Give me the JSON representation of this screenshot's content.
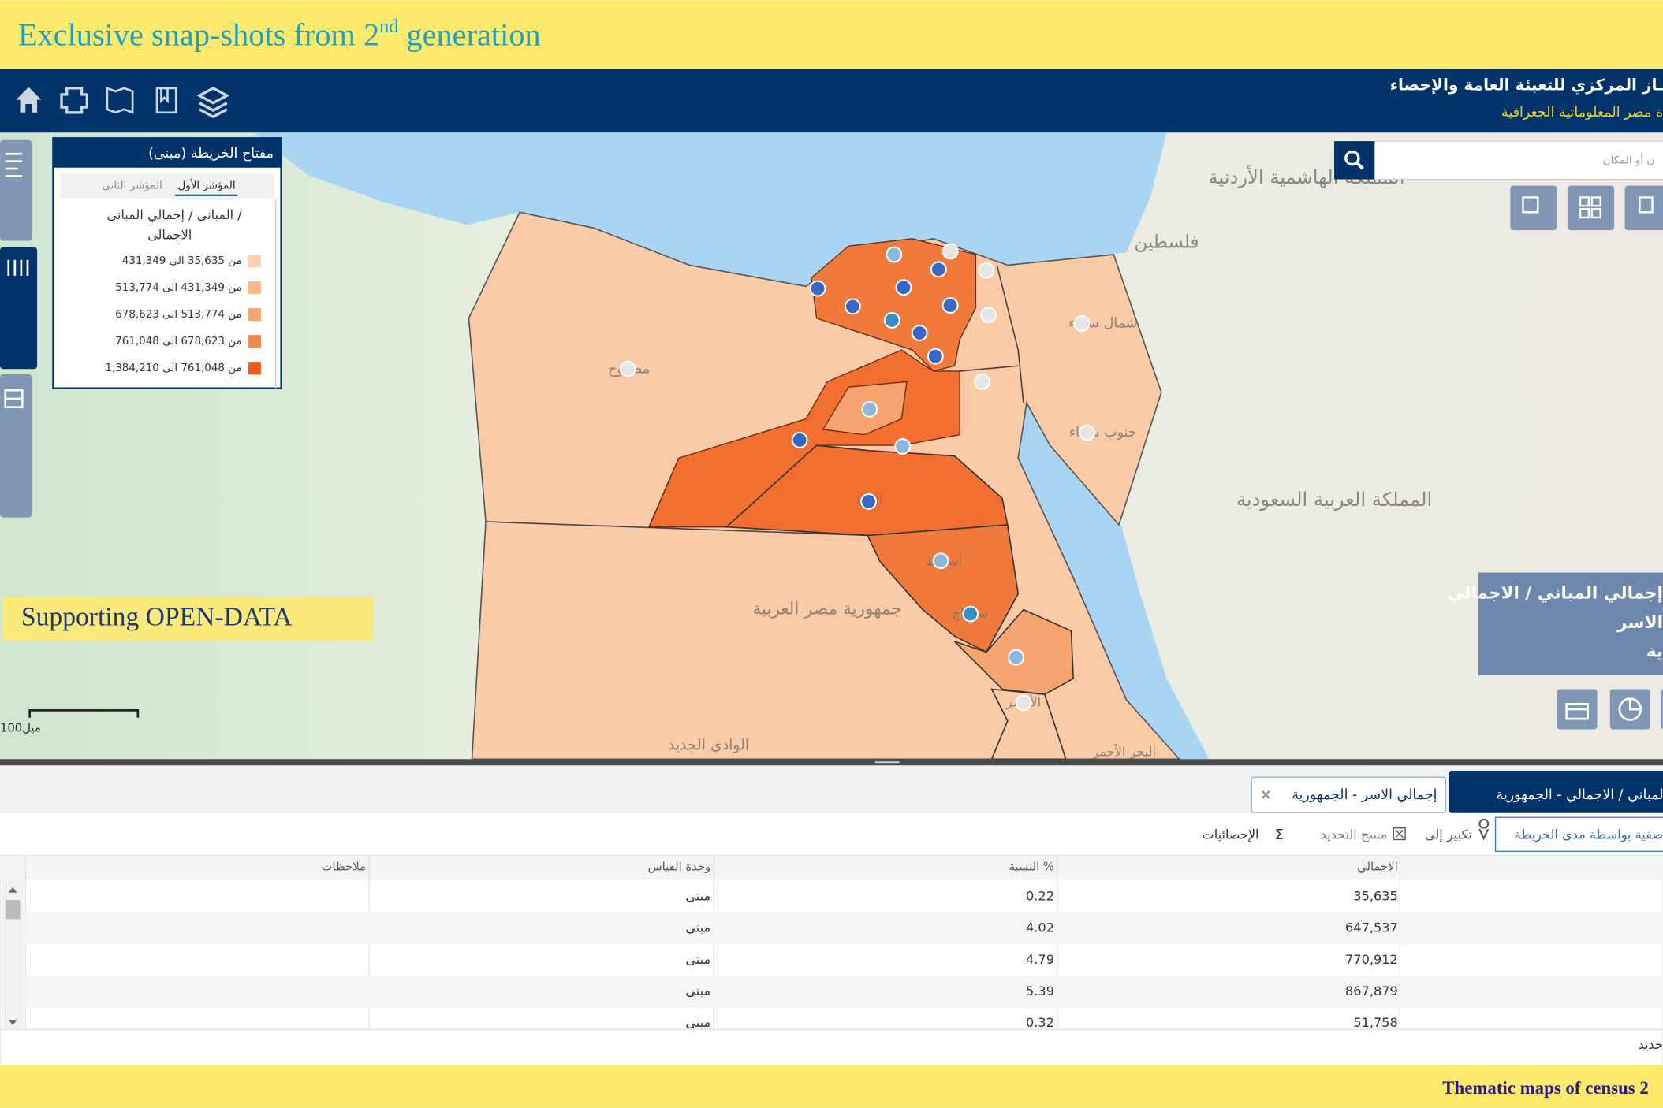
{
  "banner": {
    "title_parts": [
      "Exclusive snap-shots from 2",
      "nd",
      " generation"
    ]
  },
  "header": {
    "title": "ـاز المركزي للتعبئة العامة والإحصاء",
    "subtitle": "ة مصر المعلوماتية الجغرافية"
  },
  "search": {
    "placeholder": "ن أو المكان"
  },
  "legend": {
    "title": "مفتاح الخريطة (مبنى)",
    "tabs": [
      "المؤشر الأول",
      "المؤشر الثاني"
    ],
    "heading_lines": [
      "المبانى / إجمالي المبانى /",
      "الاجمالى"
    ],
    "items": [
      "من 35,635 الى 431,349",
      "من 431,349 الى 513,774",
      "من 513,774 الى 678,623",
      "من 678,623 الى 761,048",
      "من 761,048 الى 1,384,210"
    ]
  },
  "map": {
    "labels": [
      "المملكة الهاشمية الأردنية",
      "فلسطين",
      "المملكة العربية السعودية",
      "جمهورية مصر العربية",
      "الوادي الجديد",
      "مطروح",
      "شمال سيناء",
      "جنوب سيناء",
      "أسيوط",
      "سوهاج",
      "المنيا",
      "الأقصر",
      "البحر الأحمر"
    ],
    "scale": "100ميل"
  },
  "callout": "Supporting OPEN-DATA",
  "info_box": [
    "إجمالي المباني / الاجمالي",
    "الاسر",
    "ية"
  ],
  "tabs": [
    "المباني / الاجمالي - الجمهورية",
    "إجمالي الاسر - الجمهورية"
  ],
  "toolbar": {
    "filter": "صفية بواسطة مدى الخريطة",
    "zoom": "تكبير إلى",
    "clear": "مسح التحديد",
    "sigma": "Σ",
    "stats": "الإحصائيات"
  },
  "table": {
    "headers": [
      "الاجمالي",
      "النسبة %",
      "وحدة القياس",
      "ملاحظات"
    ],
    "rows": [
      [
        "35,635",
        "0.22",
        "مبنى"
      ],
      [
        "647,537",
        "4.02",
        "مبنى"
      ],
      [
        "770,912",
        "4.79",
        "مبنى"
      ],
      [
        "867,879",
        "5.39",
        "مبنى"
      ],
      [
        "51,758",
        "0.32",
        "مبنى"
      ]
    ]
  },
  "status": "حديد",
  "footer": "Thematic maps of census 2"
}
